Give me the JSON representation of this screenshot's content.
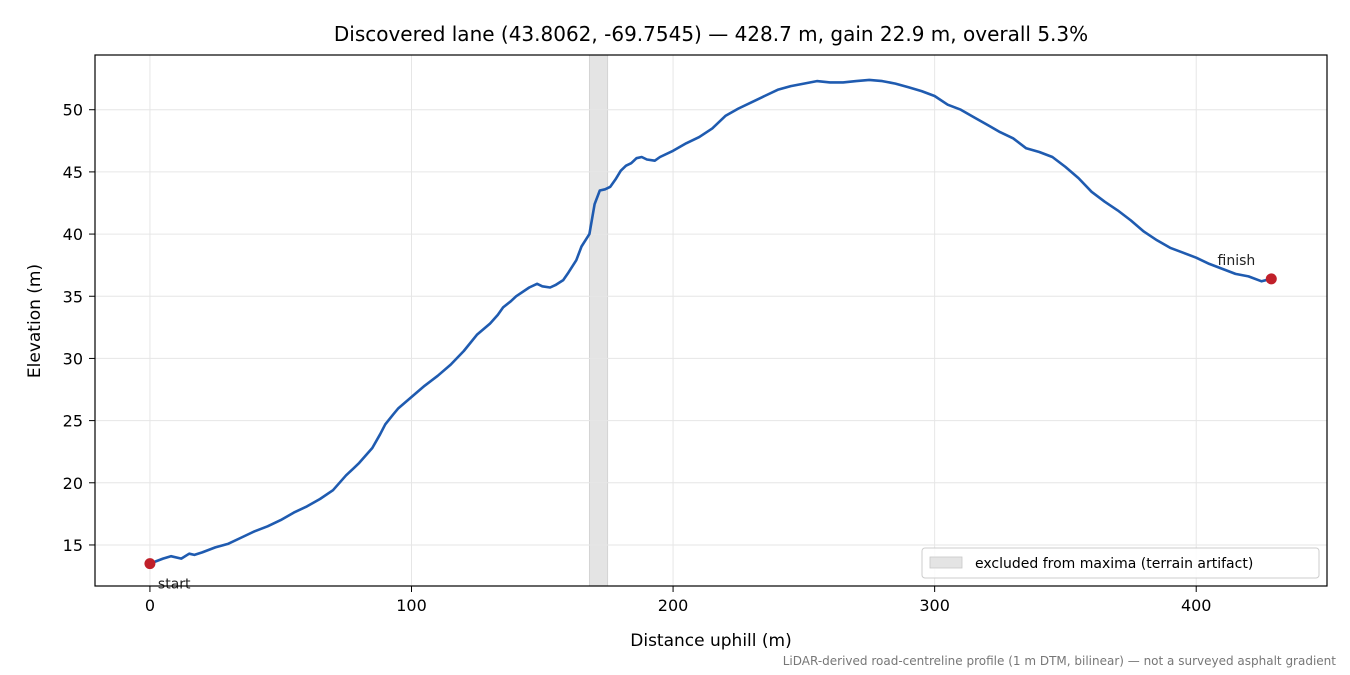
{
  "chart_data": {
    "type": "line",
    "title": "Discovered lane (43.8062, -69.7545) — 428.7 m, gain 22.9 m, overall 5.3%",
    "xlabel": "Distance uphill (m)",
    "ylabel": "Elevation (m)",
    "xlim": [
      -21,
      450
    ],
    "ylim": [
      11.7,
      54.4
    ],
    "xticks": [
      0,
      100,
      200,
      300,
      400
    ],
    "yticks": [
      15,
      20,
      25,
      30,
      35,
      40,
      45,
      50
    ],
    "grid": true,
    "legend": {
      "placement": "lower-right",
      "entries": [
        "excluded from maxima (terrain artifact)"
      ]
    },
    "excluded_band": {
      "x_start": 168,
      "x_end": 175,
      "color": "#e4e4e4"
    },
    "series": [
      {
        "color": "#1f5bb0",
        "x": [
          0,
          5,
          8,
          12,
          15,
          17,
          20,
          25,
          30,
          35,
          40,
          45,
          50,
          55,
          60,
          65,
          70,
          75,
          78,
          80,
          85,
          88,
          90,
          93,
          95,
          100,
          105,
          110,
          115,
          120,
          125,
          130,
          133,
          135,
          138,
          140,
          145,
          148,
          150,
          153,
          155,
          158,
          160,
          163,
          165,
          168,
          170,
          172,
          174,
          176,
          178,
          180,
          182,
          184,
          186,
          188,
          190,
          193,
          195,
          200,
          205,
          210,
          215,
          220,
          225,
          230,
          235,
          240,
          245,
          250,
          255,
          260,
          265,
          270,
          275,
          280,
          285,
          290,
          295,
          300,
          305,
          310,
          315,
          320,
          325,
          330,
          335,
          340,
          345,
          350,
          355,
          360,
          365,
          370,
          375,
          380,
          385,
          390,
          395,
          400,
          405,
          410,
          415,
          420,
          425,
          428.7
        ],
        "y": [
          13.5,
          13.9,
          14.1,
          13.9,
          14.3,
          14.2,
          14.4,
          14.8,
          15.1,
          15.6,
          16.1,
          16.5,
          17.0,
          17.6,
          18.1,
          18.7,
          19.4,
          20.6,
          21.2,
          21.6,
          22.8,
          23.9,
          24.7,
          25.5,
          26.0,
          26.9,
          27.8,
          28.6,
          29.5,
          30.6,
          31.9,
          32.8,
          33.5,
          34.1,
          34.6,
          35.0,
          35.7,
          36.0,
          35.8,
          35.7,
          35.9,
          36.3,
          36.9,
          37.9,
          39.0,
          40.0,
          42.4,
          43.5,
          43.6,
          43.8,
          44.4,
          45.1,
          45.5,
          45.7,
          46.1,
          46.2,
          46.0,
          45.9,
          46.2,
          46.7,
          47.3,
          47.8,
          48.5,
          49.5,
          50.1,
          50.6,
          51.1,
          51.6,
          51.9,
          52.1,
          52.3,
          52.2,
          52.2,
          52.3,
          52.4,
          52.3,
          52.1,
          51.8,
          51.5,
          51.1,
          50.4,
          50.0,
          49.4,
          48.8,
          48.2,
          47.7,
          46.9,
          46.6,
          46.2,
          45.4,
          44.5,
          43.4,
          42.6,
          41.9,
          41.1,
          40.2,
          39.5,
          38.9,
          38.5,
          38.1,
          37.6,
          37.2,
          36.8,
          36.6,
          36.2,
          36.4
        ]
      }
    ],
    "markers": [
      {
        "label": "start",
        "x": 0,
        "y": 13.5,
        "color": "#c0202a"
      },
      {
        "label": "finish",
        "x": 428.7,
        "y": 36.4,
        "color": "#c0202a"
      }
    ],
    "footnote": "LiDAR-derived road-centreline profile (1 m DTM, bilinear) — not a surveyed asphalt gradient"
  }
}
